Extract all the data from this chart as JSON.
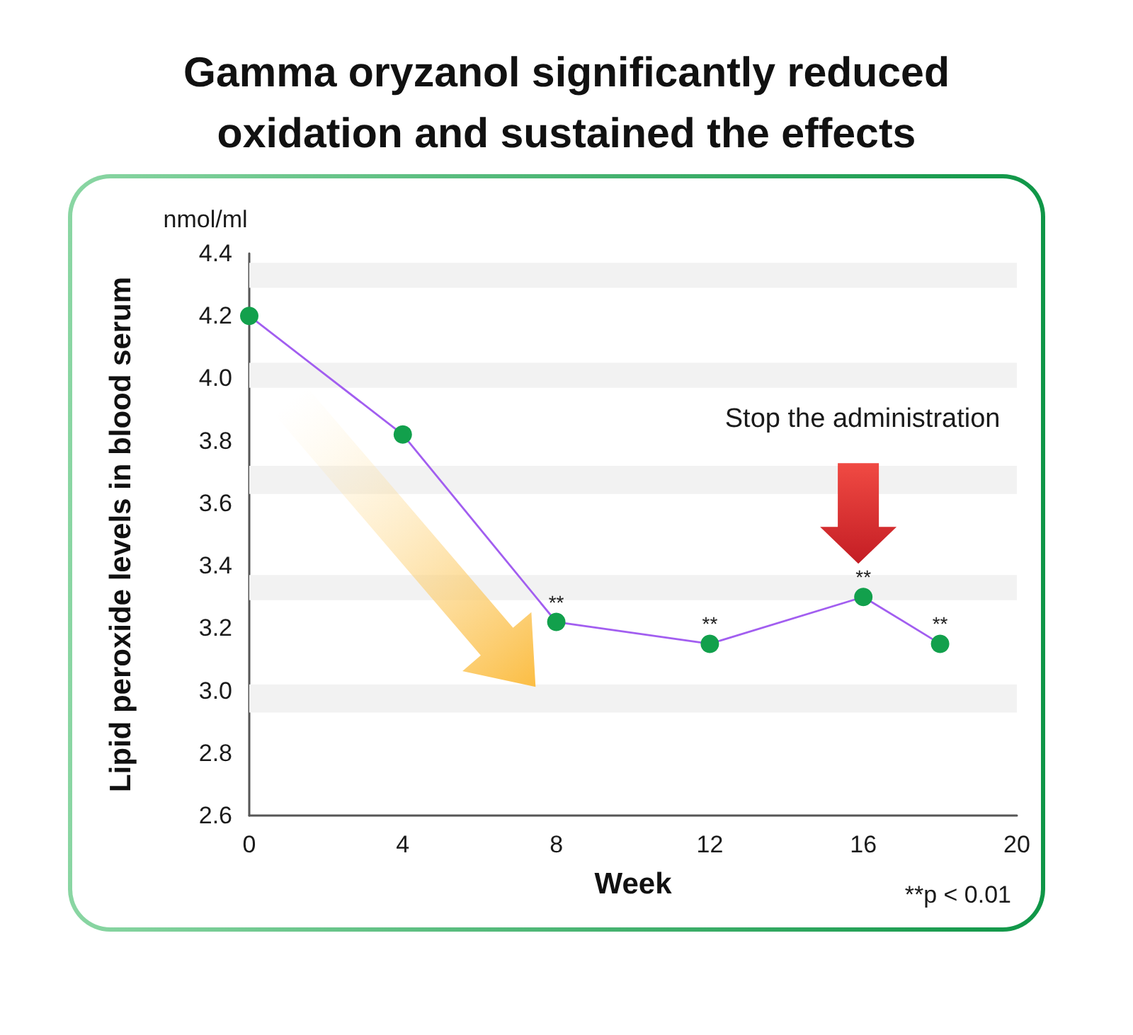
{
  "chart_data": {
    "type": "line",
    "title": "Gamma oryzanol significantly reduced oxidation and sustained the effects",
    "xlabel": "Week",
    "ylabel": "Lipid peroxide levels in blood serum",
    "x": [
      0,
      4,
      8,
      12,
      16,
      18
    ],
    "series": [
      {
        "color": "#a25ef0",
        "colors": [
          "#12a04c",
          "#12a04c",
          "#12a04c",
          "#12a04c",
          "#12a04c",
          "#12a04c"
        ],
        "values": [
          4.2,
          3.82,
          3.22,
          3.15,
          3.3,
          3.15
        ]
      }
    ],
    "xlim": [
      0,
      20
    ],
    "xticks": [
      0,
      4,
      8,
      12,
      16,
      20
    ],
    "ylim": [
      2.6,
      4.4
    ],
    "yticks": [
      2.6,
      2.8,
      {
        "value": 3,
        "label": "3.0"
      },
      3.2,
      3.4,
      3.6,
      3.8,
      {
        "value": 4,
        "label": "4.0"
      },
      4.2,
      4.4
    ],
    "marker": "circle",
    "line_style": "solid",
    "bands": [
      {
        "axis": "y",
        "from": 4.29,
        "to": 4.37,
        "color": "#f2f2f2"
      },
      {
        "axis": "y",
        "from": 3.97,
        "to": 4.05,
        "color": "#f2f2f2"
      },
      {
        "axis": "y",
        "from": 3.63,
        "to": 3.72,
        "color": "#f2f2f2"
      },
      {
        "axis": "y",
        "from": 3.29,
        "to": 3.37,
        "color": "#f2f2f2"
      },
      {
        "axis": "y",
        "from": 2.93,
        "to": 3.02,
        "color": "#f2f2f2"
      }
    ],
    "annotations": [
      {
        "text": "**",
        "x": 8,
        "y": 3.22
      },
      {
        "text": "**",
        "x": 12,
        "y": 3.15
      },
      {
        "text": "**",
        "x": 16,
        "y": 3.3
      },
      {
        "text": "**",
        "x": 18,
        "y": 3.15
      },
      "Stop the administration",
      "nmol/ml",
      "**p < 0.01"
    ]
  }
}
